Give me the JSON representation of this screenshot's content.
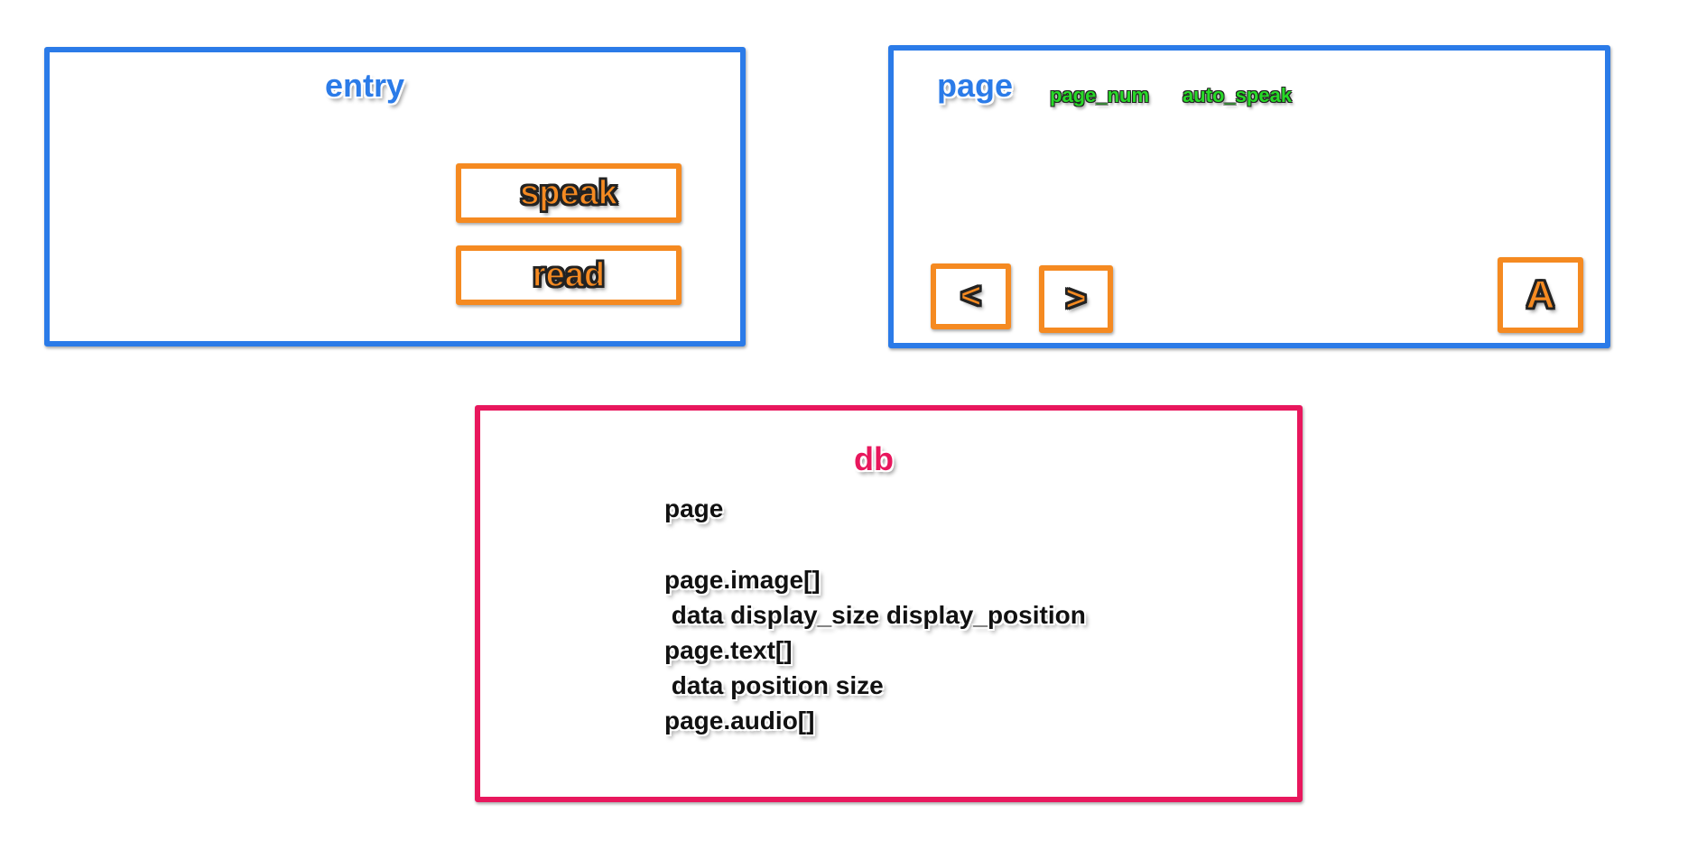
{
  "entry": {
    "title": "entry",
    "buttons": [
      "speak",
      "read"
    ]
  },
  "page": {
    "title": "page",
    "tags": [
      "page_num",
      "auto_speak"
    ],
    "buttons": {
      "prev": "<",
      "next": ">",
      "font": "A"
    }
  },
  "db": {
    "title": "db",
    "lines": [
      "page",
      "page.image[]",
      " data display_size display_position",
      "page.text[]",
      " data position size",
      "page.audio[]"
    ]
  },
  "colors": {
    "container_blue": "#2b7be8",
    "container_pink": "#e8175d",
    "button_orange": "#f58a21",
    "tag_green": "#27d927"
  }
}
